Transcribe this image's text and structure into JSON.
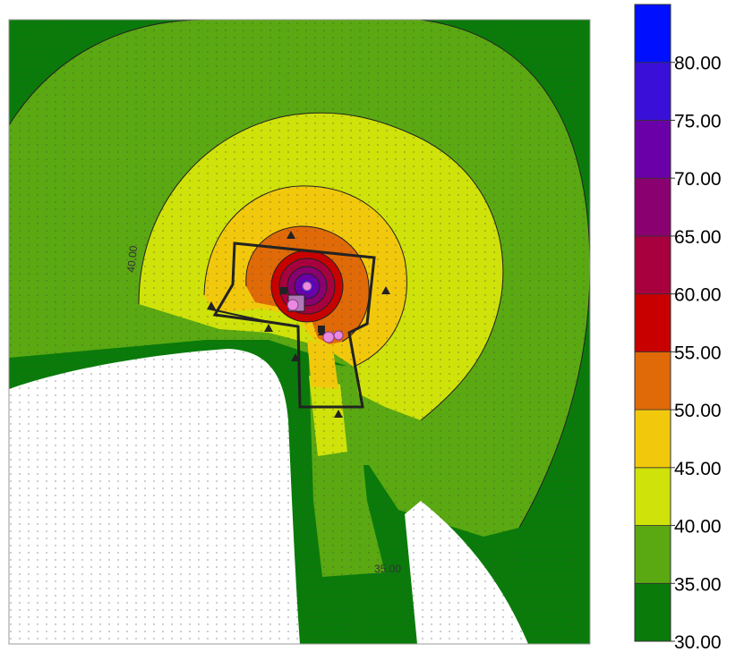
{
  "chart_data": {
    "type": "heatmap",
    "colorbar": {
      "ticks": [
        "30.00",
        "35.00",
        "40.00",
        "45.00",
        "50.00",
        "55.00",
        "60.00",
        "65.00",
        "70.00",
        "75.00",
        "80.00"
      ],
      "bins": [
        {
          "min": 30,
          "max": 35,
          "color": "#0a7b0a"
        },
        {
          "min": 35,
          "max": 40,
          "color": "#5aa812"
        },
        {
          "min": 40,
          "max": 45,
          "color": "#cfe20a"
        },
        {
          "min": 45,
          "max": 50,
          "color": "#f2c80c"
        },
        {
          "min": 50,
          "max": 55,
          "color": "#e06a08"
        },
        {
          "min": 55,
          "max": 60,
          "color": "#c80000"
        },
        {
          "min": 60,
          "max": 65,
          "color": "#a8003e"
        },
        {
          "min": 65,
          "max": 70,
          "color": "#8a0070"
        },
        {
          "min": 70,
          "max": 75,
          "color": "#6a00a8"
        },
        {
          "min": 75,
          "max": 80,
          "color": "#3a10d8"
        },
        {
          "min": 80,
          "max": 85,
          "color": "#0010ff"
        }
      ]
    },
    "contour_labels": [
      "40.00",
      "35.00"
    ],
    "markers": {
      "receiver-triangle-icon": 7,
      "source-circle-icon": 4
    }
  },
  "colors": {
    "background": "#0a7b0a",
    "building": "#ffffff",
    "boundary": "#222222"
  }
}
